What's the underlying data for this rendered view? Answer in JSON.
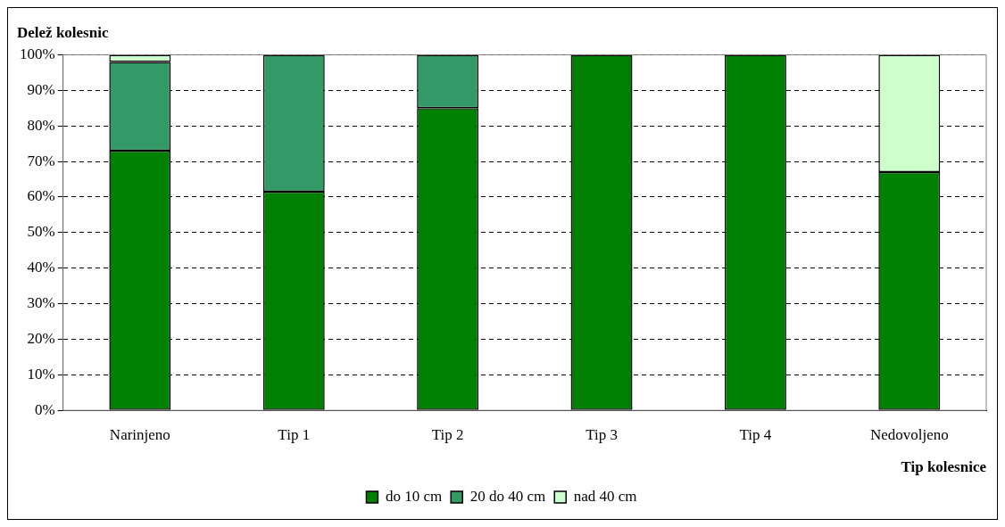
{
  "chart_data": {
    "type": "bar",
    "title": "Delež kolesnic",
    "xlabel": "Tip kolesnice",
    "categories": [
      "Narinjeno",
      "Tip 1",
      "Tip 2",
      "Tip 3",
      "Tip 4",
      "Nedovoljeno"
    ],
    "stacked": true,
    "series": [
      {
        "name": "do 10 cm",
        "color": "#008000",
        "values": [
          73,
          61.5,
          85,
          100,
          100,
          67
        ]
      },
      {
        "name": "20 do 40 cm",
        "color": "#339966",
        "values": [
          25,
          38.5,
          15,
          0,
          0,
          0
        ]
      },
      {
        "name": "nad 40 cm",
        "color": "#ccffcc",
        "values": [
          2,
          0,
          0,
          0,
          0,
          33
        ]
      }
    ],
    "ylim": [
      0,
      100
    ],
    "yticks": [
      {
        "value": 0,
        "label": "0%"
      },
      {
        "value": 10,
        "label": "10%"
      },
      {
        "value": 20,
        "label": "20%"
      },
      {
        "value": 30,
        "label": "30%"
      },
      {
        "value": 40,
        "label": "40%"
      },
      {
        "value": 50,
        "label": "50%"
      },
      {
        "value": 60,
        "label": "60%"
      },
      {
        "value": 70,
        "label": "70%"
      },
      {
        "value": 80,
        "label": "80%"
      },
      {
        "value": 90,
        "label": "90%"
      },
      {
        "value": 100,
        "label": "100%"
      }
    ],
    "grid": "y",
    "legend": "bottom"
  }
}
